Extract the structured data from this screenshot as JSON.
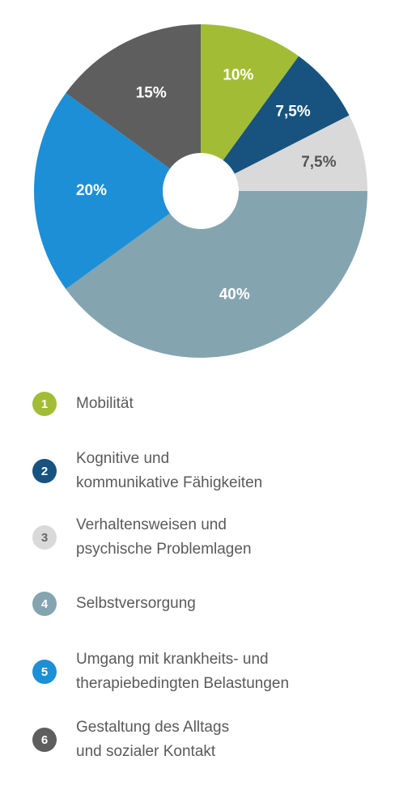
{
  "chart_data": {
    "type": "pie",
    "title": "",
    "donut": true,
    "categories": [
      "Mobilität",
      "Kognitive und kommunikative Fähigkeiten",
      "Verhaltensweisen und psychische Problemlagen",
      "Selbstversorgung",
      "Umgang mit krankheits- und therapiebedingten Belastungen",
      "Gestaltung des Alltags und sozialer Kontakt"
    ],
    "values": [
      10,
      7.5,
      7.5,
      40,
      20,
      15
    ],
    "value_labels": [
      "10%",
      "7,5%",
      "7,5%",
      "40%",
      "20%",
      "15%"
    ],
    "colors": [
      "#a2bd35",
      "#17537e",
      "#d9d9d9",
      "#84a4b0",
      "#1d8fd6",
      "#5e5e5e"
    ],
    "label_colors": [
      "#ffffff",
      "#ffffff",
      "#555555",
      "#ffffff",
      "#ffffff",
      "#ffffff"
    ],
    "legend": {
      "placement": "bottom",
      "items": [
        {
          "number": "1",
          "text": "Mobilität"
        },
        {
          "number": "2",
          "text": "Kognitive und\nkommunikative Fähigkeiten"
        },
        {
          "number": "3",
          "text": "Verhaltensweisen und\npsychische Problemlagen"
        },
        {
          "number": "4",
          "text": "Selbstversorgung"
        },
        {
          "number": "5",
          "text": "Umgang mit krankheits- und\ntherapiebedingten Belastungen"
        },
        {
          "number": "6",
          "text": "Gestaltung des Alltags\nund sozialer Kontakt"
        }
      ]
    }
  }
}
